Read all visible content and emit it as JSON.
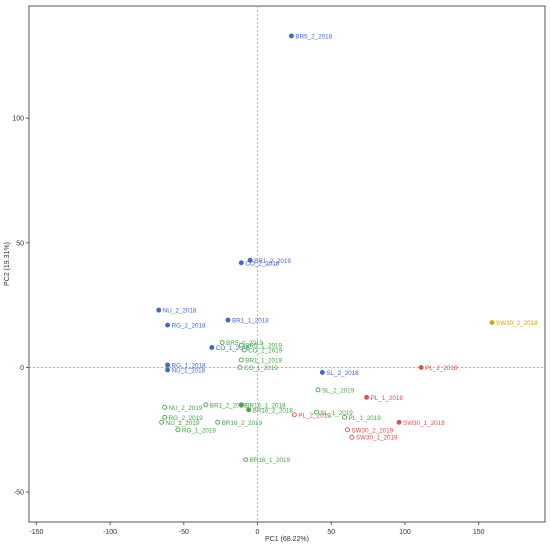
{
  "chart_data": {
    "type": "scatter",
    "title": "",
    "xlabel": "PC1 (68.22%)",
    "ylabel": "PC2 (19.31%)",
    "xlim": [
      -155,
      195
    ],
    "ylim": [
      -62,
      145
    ],
    "x_ticks": [
      -150,
      -100,
      -50,
      0,
      50,
      100,
      150
    ],
    "y_ticks": [
      -50,
      0,
      50,
      100
    ],
    "reference_lines": {
      "x": 0,
      "y": 0,
      "color": "#ff8080",
      "style": "dotted"
    },
    "grid": false,
    "colors": {
      "blue": "#4468c8",
      "green": "#46a446",
      "red": "#d9534f",
      "orange": "#d4a017"
    },
    "points": [
      {
        "label": "BR5_2_2018",
        "x": 23,
        "y": 133,
        "color": "blue",
        "filled": true
      },
      {
        "label": "BR1_2_2018",
        "x": -5,
        "y": 43,
        "color": "blue",
        "filled": true
      },
      {
        "label": "CO_2_2018",
        "x": -11,
        "y": 42,
        "color": "blue",
        "filled": true
      },
      {
        "label": "NU_2_2018",
        "x": -67,
        "y": 23,
        "color": "blue",
        "filled": true
      },
      {
        "label": "RG_2_2018",
        "x": -61,
        "y": 17,
        "color": "blue",
        "filled": true
      },
      {
        "label": "BR1_1_2018",
        "x": -20,
        "y": 19,
        "color": "blue",
        "filled": true
      },
      {
        "label": "CO_1_2018",
        "x": -31,
        "y": 8,
        "color": "blue",
        "filled": true
      },
      {
        "label": "RG_1_2018",
        "x": -61,
        "y": 1,
        "color": "blue",
        "filled": true
      },
      {
        "label": "NU_1_2018",
        "x": -61,
        "y": -1,
        "color": "blue",
        "filled": true
      },
      {
        "label": "SL_2_2018",
        "x": 44,
        "y": -2,
        "color": "blue",
        "filled": true
      },
      {
        "label": "BR5_2_2019",
        "x": -24,
        "y": 10,
        "color": "green",
        "filled": false
      },
      {
        "label": "BR5_1_2019",
        "x": -11,
        "y": 9,
        "color": "green",
        "filled": false
      },
      {
        "label": "CO_2_2019",
        "x": -9,
        "y": 7,
        "color": "green",
        "filled": false
      },
      {
        "label": "BR1_1_2019",
        "x": -11,
        "y": 3,
        "color": "green",
        "filled": false
      },
      {
        "label": "CO_1_2019",
        "x": -12,
        "y": 0,
        "color": "green",
        "filled": false
      },
      {
        "label": "BR16_1_2018",
        "x": -11,
        "y": -15,
        "color": "green",
        "filled": true
      },
      {
        "label": "BR16_2_2018",
        "x": -6,
        "y": -17,
        "color": "green",
        "filled": true
      },
      {
        "label": "BR1_2_2019",
        "x": -35,
        "y": -15,
        "color": "green",
        "filled": false
      },
      {
        "label": "BR16_2_2019",
        "x": -27,
        "y": -22,
        "color": "green",
        "filled": false
      },
      {
        "label": "BR16_1_2019",
        "x": -8,
        "y": -37,
        "color": "green",
        "filled": false
      },
      {
        "label": "NU_2_2019",
        "x": -63,
        "y": -16,
        "color": "green",
        "filled": false
      },
      {
        "label": "RG_2_2019",
        "x": -63,
        "y": -20,
        "color": "green",
        "filled": false
      },
      {
        "label": "NU_1_2019",
        "x": -65,
        "y": -22,
        "color": "green",
        "filled": false
      },
      {
        "label": "RG_1_2019",
        "x": -54,
        "y": -25,
        "color": "green",
        "filled": false
      },
      {
        "label": "SL_2_2019",
        "x": 41,
        "y": -9,
        "color": "green",
        "filled": false
      },
      {
        "label": "SL_1_2019",
        "x": 40,
        "y": -18,
        "color": "green",
        "filled": false
      },
      {
        "label": "PL_1_2019",
        "x": 59,
        "y": -20,
        "color": "green",
        "filled": false
      },
      {
        "label": "PL_2_2019",
        "x": 25,
        "y": -19,
        "color": "red",
        "filled": false
      },
      {
        "label": "PL_2_2018",
        "x": 111,
        "y": 0,
        "color": "red",
        "filled": true
      },
      {
        "label": "PL_1_2018",
        "x": 74,
        "y": -12,
        "color": "red",
        "filled": true
      },
      {
        "label": "SW30_1_2018",
        "x": 96,
        "y": -22,
        "color": "red",
        "filled": true
      },
      {
        "label": "SW30_2_2019",
        "x": 61,
        "y": -25,
        "color": "red",
        "filled": false
      },
      {
        "label": "SW30_1_2019",
        "x": 64,
        "y": -28,
        "color": "red",
        "filled": false
      },
      {
        "label": "SW30_2_2018",
        "x": 159,
        "y": 18,
        "color": "orange",
        "filled": true
      }
    ]
  }
}
